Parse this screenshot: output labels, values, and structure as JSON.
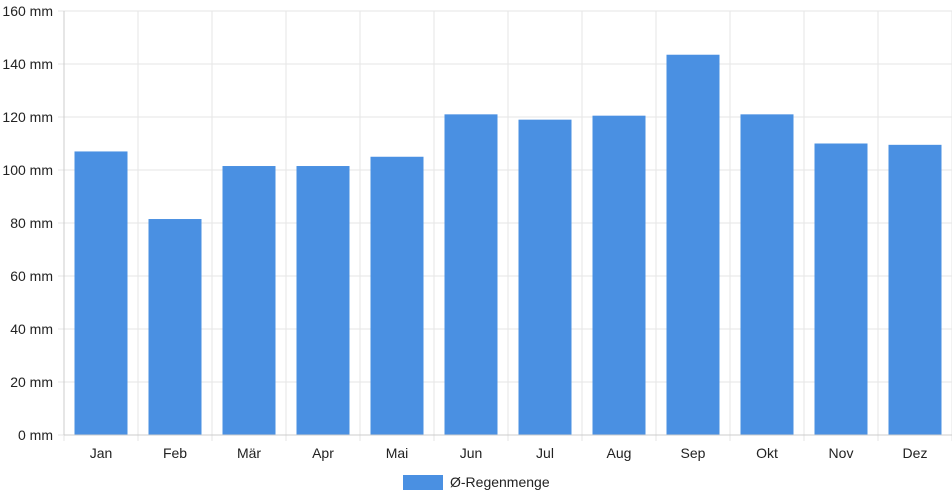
{
  "chart_data": {
    "type": "bar",
    "categories": [
      "Jan",
      "Feb",
      "Mär",
      "Apr",
      "Mai",
      "Jun",
      "Jul",
      "Aug",
      "Sep",
      "Okt",
      "Nov",
      "Dez"
    ],
    "series": [
      {
        "name": "Ø-Regenmenge",
        "values": [
          107,
          81.5,
          101.5,
          101.5,
          105,
          121,
          119,
          120.5,
          143.5,
          121,
          110,
          109.5
        ]
      }
    ],
    "y_tick_labels": [
      "0 mm",
      "20 mm",
      "40 mm",
      "60 mm",
      "80 mm",
      "100 mm",
      "120 mm",
      "140 mm",
      "160 mm"
    ],
    "ylim": [
      0,
      160
    ],
    "grid": true,
    "legend_position": "bottom-center",
    "colors": {
      "bar": "#4a90e2",
      "grid": "#e5e5e5",
      "axis": "#cccccc"
    }
  }
}
